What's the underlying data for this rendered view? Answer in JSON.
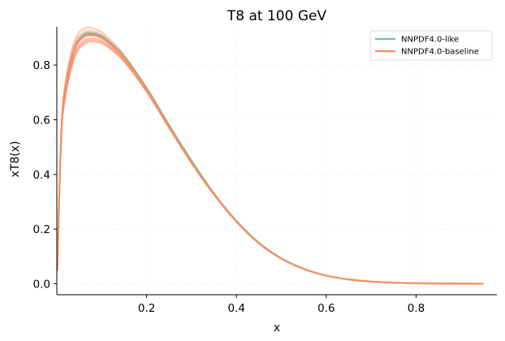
{
  "chart_data": {
    "type": "line",
    "title": "T8 at 100 GeV",
    "xlabel": "x",
    "ylabel": "xT8(x)",
    "xlim": [
      0.0,
      0.98
    ],
    "ylim": [
      -0.04,
      0.94
    ],
    "x_ticks": [
      0.2,
      0.4,
      0.6,
      0.8
    ],
    "x_tick_labels": [
      "0.2",
      "0.4",
      "0.6",
      "0.8"
    ],
    "y_ticks": [
      0.0,
      0.2,
      0.4,
      0.6,
      0.8
    ],
    "y_tick_labels": [
      "0.0",
      "0.2",
      "0.4",
      "0.6",
      "0.8"
    ],
    "grid": true,
    "legend_position": "top-right",
    "series": [
      {
        "name": "NNPDF4.0-like",
        "color": "#66c2a5",
        "x": [
          0.001,
          0.01,
          0.02,
          0.04,
          0.06,
          0.08,
          0.1,
          0.12,
          0.15,
          0.2,
          0.25,
          0.3,
          0.35,
          0.4,
          0.45,
          0.5,
          0.55,
          0.6,
          0.65,
          0.7,
          0.75,
          0.8,
          0.85,
          0.9,
          0.95
        ],
        "values": [
          0.05,
          0.55,
          0.72,
          0.86,
          0.91,
          0.915,
          0.905,
          0.88,
          0.83,
          0.715,
          0.58,
          0.45,
          0.33,
          0.23,
          0.15,
          0.093,
          0.055,
          0.03,
          0.016,
          0.008,
          0.004,
          0.002,
          0.001,
          0.0005,
          0.0002
        ]
      },
      {
        "name": "NNPDF4.0-baseline",
        "color": "#fc8d62",
        "x": [
          0.001,
          0.01,
          0.02,
          0.04,
          0.06,
          0.08,
          0.1,
          0.12,
          0.15,
          0.2,
          0.25,
          0.3,
          0.35,
          0.4,
          0.45,
          0.5,
          0.55,
          0.6,
          0.65,
          0.7,
          0.75,
          0.8,
          0.85,
          0.9,
          0.95
        ],
        "values": [
          0.05,
          0.55,
          0.72,
          0.86,
          0.905,
          0.91,
          0.9,
          0.875,
          0.825,
          0.71,
          0.575,
          0.445,
          0.328,
          0.228,
          0.148,
          0.092,
          0.054,
          0.03,
          0.016,
          0.008,
          0.004,
          0.002,
          0.001,
          0.0005,
          0.0002
        ]
      }
    ]
  }
}
